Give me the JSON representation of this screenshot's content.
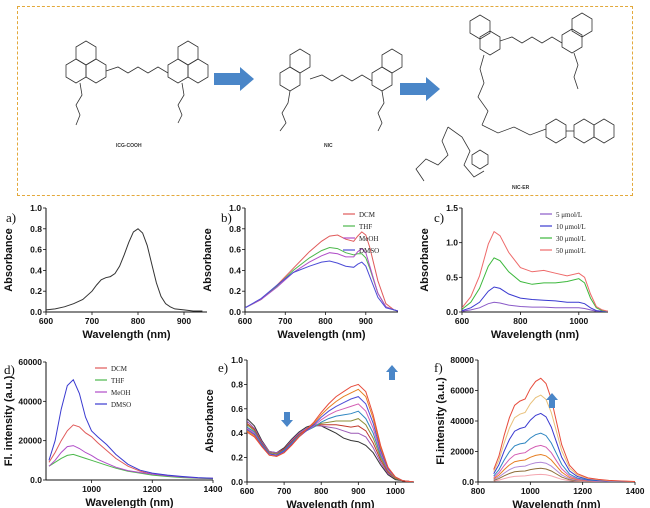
{
  "scheme": {
    "compounds": [
      "ICG-COOH",
      "NIC",
      "NIC-ER"
    ],
    "arrow_color": "#4a86c8",
    "frame_color": "#e3a93c"
  },
  "chart_data": [
    {
      "panel": "a)",
      "type": "line",
      "xlabel": "Wavelength (nm)",
      "ylabel": "Absorbance",
      "xlim": [
        600,
        950
      ],
      "ylim": [
        0,
        1.0
      ],
      "xticks": [
        600,
        700,
        800,
        900
      ],
      "yticks": [
        0.0,
        0.2,
        0.4,
        0.6,
        0.8,
        1.0
      ],
      "series": [
        {
          "color": "#333333",
          "x": [
            600,
            620,
            640,
            660,
            680,
            700,
            710,
            720,
            730,
            740,
            750,
            760,
            770,
            780,
            790,
            800,
            810,
            820,
            830,
            840,
            850,
            860,
            870,
            880,
            900,
            920,
            940
          ],
          "y": [
            0.02,
            0.03,
            0.05,
            0.08,
            0.12,
            0.2,
            0.26,
            0.31,
            0.33,
            0.34,
            0.37,
            0.44,
            0.55,
            0.67,
            0.77,
            0.8,
            0.76,
            0.64,
            0.46,
            0.28,
            0.15,
            0.08,
            0.05,
            0.03,
            0.02,
            0.01,
            0.01
          ]
        }
      ]
    },
    {
      "panel": "b)",
      "type": "line",
      "xlabel": "Wavelength (nm)",
      "ylabel": "Absorbance",
      "xlim": [
        600,
        980
      ],
      "ylim": [
        0,
        1.0
      ],
      "xticks": [
        600,
        700,
        800,
        900
      ],
      "yticks": [
        0.0,
        0.2,
        0.4,
        0.6,
        0.8,
        1.0
      ],
      "legend": "top-right",
      "series": [
        {
          "name": "DCM",
          "color": "#e05a5a",
          "x": [
            600,
            640,
            680,
            720,
            760,
            790,
            810,
            830,
            850,
            870,
            880,
            890,
            900,
            910,
            930,
            950,
            970,
            980
          ],
          "y": [
            0.04,
            0.12,
            0.26,
            0.42,
            0.58,
            0.68,
            0.73,
            0.74,
            0.7,
            0.68,
            0.73,
            0.77,
            0.74,
            0.62,
            0.3,
            0.08,
            0.02,
            0.01
          ]
        },
        {
          "name": "THF",
          "color": "#4cb84c",
          "x": [
            600,
            640,
            680,
            720,
            760,
            790,
            810,
            830,
            850,
            870,
            880,
            890,
            900,
            910,
            930,
            950,
            970,
            980
          ],
          "y": [
            0.04,
            0.12,
            0.25,
            0.4,
            0.52,
            0.59,
            0.62,
            0.61,
            0.57,
            0.55,
            0.56,
            0.56,
            0.52,
            0.42,
            0.18,
            0.05,
            0.02,
            0.01
          ]
        },
        {
          "name": "MeOH",
          "color": "#b04dc8",
          "x": [
            600,
            640,
            680,
            720,
            760,
            790,
            810,
            830,
            850,
            870,
            880,
            890,
            900,
            910,
            930,
            950,
            970,
            980
          ],
          "y": [
            0.04,
            0.12,
            0.24,
            0.38,
            0.48,
            0.54,
            0.57,
            0.56,
            0.53,
            0.53,
            0.58,
            0.61,
            0.57,
            0.44,
            0.18,
            0.05,
            0.02,
            0.01
          ]
        },
        {
          "name": "DMSO",
          "color": "#4b4bd6",
          "x": [
            600,
            640,
            680,
            720,
            760,
            790,
            810,
            830,
            850,
            870,
            880,
            890,
            900,
            910,
            930,
            950,
            970,
            980
          ],
          "y": [
            0.04,
            0.13,
            0.26,
            0.38,
            0.44,
            0.48,
            0.49,
            0.47,
            0.44,
            0.43,
            0.46,
            0.48,
            0.44,
            0.34,
            0.14,
            0.04,
            0.02,
            0.01
          ]
        }
      ]
    },
    {
      "panel": "c)",
      "type": "line",
      "xlabel": "Wavelength (nm)",
      "ylabel": "Absorbance",
      "xlim": [
        600,
        1100
      ],
      "ylim": [
        0,
        1.5
      ],
      "xticks": [
        600,
        800,
        1000
      ],
      "yticks": [
        0.0,
        0.5,
        1.0,
        1.5
      ],
      "legend": "top-right",
      "series": [
        {
          "name": "5 μmol/L",
          "color": "#8a5ac8",
          "x": [
            600,
            630,
            660,
            690,
            710,
            730,
            760,
            800,
            840,
            880,
            920,
            960,
            1000,
            1020,
            1040,
            1060,
            1080,
            1100
          ],
          "y": [
            0.01,
            0.03,
            0.06,
            0.12,
            0.14,
            0.13,
            0.1,
            0.08,
            0.07,
            0.07,
            0.06,
            0.06,
            0.06,
            0.05,
            0.03,
            0.01,
            0.01,
            0.0
          ]
        },
        {
          "name": "10 μmol/L",
          "color": "#3a3ad0",
          "x": [
            600,
            630,
            660,
            690,
            710,
            730,
            760,
            800,
            840,
            880,
            920,
            960,
            1000,
            1020,
            1040,
            1060,
            1080,
            1100
          ],
          "y": [
            0.02,
            0.06,
            0.14,
            0.3,
            0.36,
            0.34,
            0.26,
            0.2,
            0.18,
            0.17,
            0.16,
            0.14,
            0.14,
            0.12,
            0.06,
            0.02,
            0.01,
            0.0
          ]
        },
        {
          "name": "30 μmol/L",
          "color": "#3cb83c",
          "x": [
            600,
            630,
            660,
            690,
            710,
            730,
            760,
            800,
            840,
            880,
            920,
            960,
            1000,
            1020,
            1040,
            1060,
            1080,
            1100
          ],
          "y": [
            0.04,
            0.14,
            0.34,
            0.66,
            0.78,
            0.74,
            0.58,
            0.44,
            0.4,
            0.42,
            0.42,
            0.44,
            0.48,
            0.42,
            0.2,
            0.06,
            0.02,
            0.01
          ]
        },
        {
          "name": "50 μmol/L",
          "color": "#ee6a6a",
          "x": [
            600,
            630,
            660,
            690,
            710,
            730,
            760,
            800,
            840,
            880,
            920,
            960,
            1000,
            1020,
            1040,
            1060,
            1080,
            1100
          ],
          "y": [
            0.06,
            0.22,
            0.52,
            0.98,
            1.16,
            1.1,
            0.86,
            0.64,
            0.58,
            0.6,
            0.56,
            0.52,
            0.56,
            0.5,
            0.26,
            0.08,
            0.03,
            0.01
          ]
        }
      ]
    },
    {
      "panel": "d)",
      "type": "line",
      "xlabel": "Wavelength (nm)",
      "ylabel": "Fl. intensity (a.u.)",
      "xlim": [
        850,
        1400
      ],
      "ylim": [
        0,
        60000
      ],
      "xticks": [
        1000,
        1200,
        1400
      ],
      "yticks": [
        0,
        20000,
        40000,
        60000
      ],
      "legend": "top-right",
      "series": [
        {
          "name": "DCM",
          "color": "#e05a5a",
          "x": [
            860,
            880,
            900,
            920,
            940,
            960,
            980,
            1000,
            1020,
            1050,
            1080,
            1120,
            1160,
            1200,
            1250,
            1300,
            1350,
            1400
          ],
          "y": [
            9000,
            14000,
            20000,
            25000,
            28000,
            27000,
            24000,
            22000,
            19000,
            15000,
            11000,
            7000,
            4500,
            3000,
            2000,
            1500,
            1000,
            800
          ]
        },
        {
          "name": "THF",
          "color": "#4cb84c",
          "x": [
            860,
            880,
            900,
            920,
            940,
            960,
            980,
            1000,
            1020,
            1050,
            1080,
            1120,
            1160,
            1200,
            1250,
            1300,
            1350,
            1400
          ],
          "y": [
            7000,
            9000,
            11000,
            12500,
            13000,
            12000,
            11000,
            10000,
            9000,
            7500,
            6000,
            4500,
            3500,
            2500,
            1800,
            1200,
            900,
            700
          ]
        },
        {
          "name": "MeOH",
          "color": "#b04dc8",
          "x": [
            860,
            880,
            900,
            920,
            940,
            960,
            980,
            1000,
            1020,
            1050,
            1080,
            1120,
            1160,
            1200,
            1250,
            1300,
            1350,
            1400
          ],
          "y": [
            7000,
            10000,
            14000,
            17000,
            17500,
            16000,
            14000,
            12500,
            10500,
            8500,
            6500,
            4800,
            3800,
            3000,
            2200,
            1500,
            1000,
            800
          ]
        },
        {
          "name": "DMSO",
          "color": "#3a3ad0",
          "x": [
            860,
            880,
            900,
            920,
            940,
            960,
            980,
            1000,
            1020,
            1050,
            1080,
            1120,
            1160,
            1200,
            1250,
            1300,
            1350,
            1400
          ],
          "y": [
            10000,
            20000,
            36000,
            48000,
            51000,
            44000,
            32000,
            25000,
            22000,
            18000,
            13000,
            8000,
            5000,
            3500,
            2500,
            1800,
            1200,
            900
          ]
        }
      ]
    },
    {
      "panel": "e)",
      "type": "line",
      "xlabel": "Wavelength (nm)",
      "ylabel": "Absorbance",
      "xlim": [
        600,
        1050
      ],
      "ylim": [
        0,
        1.0
      ],
      "xticks": [
        600,
        700,
        800,
        900,
        1000
      ],
      "yticks": [
        0.0,
        0.2,
        0.4,
        0.6,
        0.8,
        1.0
      ],
      "x": [
        600,
        620,
        640,
        660,
        680,
        700,
        720,
        740,
        760,
        780,
        800,
        820,
        840,
        860,
        880,
        900,
        920,
        940,
        960,
        980,
        1000,
        1020,
        1050
      ],
      "series": [
        {
          "color": "#333333",
          "y": [
            0.52,
            0.46,
            0.34,
            0.25,
            0.24,
            0.28,
            0.35,
            0.41,
            0.45,
            0.47,
            0.46,
            0.43,
            0.4,
            0.36,
            0.34,
            0.33,
            0.3,
            0.24,
            0.14,
            0.06,
            0.02,
            0.01,
            0.0
          ]
        },
        {
          "color": "#9b59b6",
          "y": [
            0.5,
            0.44,
            0.33,
            0.25,
            0.24,
            0.27,
            0.34,
            0.4,
            0.44,
            0.46,
            0.46,
            0.45,
            0.44,
            0.42,
            0.4,
            0.4,
            0.37,
            0.28,
            0.16,
            0.07,
            0.03,
            0.01,
            0.0
          ]
        },
        {
          "color": "#c0392b",
          "y": [
            0.48,
            0.43,
            0.32,
            0.24,
            0.23,
            0.27,
            0.33,
            0.39,
            0.43,
            0.46,
            0.47,
            0.47,
            0.47,
            0.46,
            0.45,
            0.46,
            0.42,
            0.32,
            0.18,
            0.08,
            0.03,
            0.01,
            0.0
          ]
        },
        {
          "color": "#8e8e3a",
          "y": [
            0.47,
            0.42,
            0.31,
            0.24,
            0.23,
            0.26,
            0.32,
            0.38,
            0.42,
            0.45,
            0.48,
            0.49,
            0.5,
            0.5,
            0.5,
            0.52,
            0.47,
            0.36,
            0.2,
            0.09,
            0.03,
            0.01,
            0.0
          ]
        },
        {
          "color": "#2e86c1",
          "y": [
            0.45,
            0.41,
            0.31,
            0.23,
            0.22,
            0.26,
            0.32,
            0.38,
            0.42,
            0.45,
            0.49,
            0.52,
            0.54,
            0.55,
            0.56,
            0.58,
            0.52,
            0.4,
            0.22,
            0.1,
            0.04,
            0.01,
            0.0
          ]
        },
        {
          "color": "#d35db3",
          "y": [
            0.44,
            0.4,
            0.3,
            0.23,
            0.22,
            0.25,
            0.31,
            0.37,
            0.42,
            0.46,
            0.51,
            0.55,
            0.58,
            0.6,
            0.62,
            0.64,
            0.58,
            0.44,
            0.24,
            0.1,
            0.04,
            0.01,
            0.0
          ]
        },
        {
          "color": "#4d4dd6",
          "y": [
            0.43,
            0.39,
            0.3,
            0.23,
            0.22,
            0.25,
            0.31,
            0.37,
            0.42,
            0.47,
            0.53,
            0.58,
            0.62,
            0.65,
            0.68,
            0.7,
            0.64,
            0.48,
            0.26,
            0.11,
            0.04,
            0.01,
            0.0
          ]
        },
        {
          "color": "#e67e22",
          "y": [
            0.42,
            0.38,
            0.29,
            0.22,
            0.21,
            0.24,
            0.3,
            0.37,
            0.43,
            0.48,
            0.55,
            0.61,
            0.66,
            0.7,
            0.73,
            0.76,
            0.7,
            0.52,
            0.28,
            0.12,
            0.04,
            0.01,
            0.0
          ]
        },
        {
          "color": "#e74c3c",
          "y": [
            0.41,
            0.37,
            0.29,
            0.22,
            0.21,
            0.24,
            0.3,
            0.37,
            0.43,
            0.49,
            0.57,
            0.64,
            0.7,
            0.74,
            0.78,
            0.8,
            0.74,
            0.55,
            0.3,
            0.12,
            0.04,
            0.01,
            0.0
          ]
        }
      ]
    },
    {
      "panel": "f)",
      "type": "line",
      "xlabel": "Wavelength (nm)",
      "ylabel": "Fl.intensity (a.u.)",
      "xlim": [
        800,
        1400
      ],
      "ylim": [
        0,
        80000
      ],
      "xticks": [
        800,
        1000,
        1200,
        1400
      ],
      "yticks": [
        0,
        20000,
        40000,
        60000,
        80000
      ],
      "x": [
        860,
        880,
        900,
        920,
        940,
        960,
        980,
        1000,
        1020,
        1040,
        1060,
        1080,
        1100,
        1120,
        1150,
        1180,
        1220,
        1260,
        1300,
        1350,
        1400
      ],
      "series": [
        {
          "color": "#f4a6b0",
          "peak": 5000
        },
        {
          "color": "#8e6e3a",
          "peak": 9000
        },
        {
          "color": "#b088d6",
          "peak": 13000
        },
        {
          "color": "#e67e22",
          "peak": 18000
        },
        {
          "color": "#d35db3",
          "peak": 24000
        },
        {
          "color": "#2e86c1",
          "peak": 32000
        },
        {
          "color": "#3a3ad0",
          "peak": 45000
        },
        {
          "color": "#e8c07a",
          "peak": 57000
        },
        {
          "color": "#e74c3c",
          "peak": 68000
        }
      ],
      "shape": [
        0.12,
        0.25,
        0.45,
        0.62,
        0.74,
        0.78,
        0.8,
        0.9,
        0.97,
        1.0,
        0.95,
        0.8,
        0.58,
        0.36,
        0.16,
        0.08,
        0.04,
        0.025,
        0.015,
        0.01,
        0.005
      ]
    }
  ]
}
